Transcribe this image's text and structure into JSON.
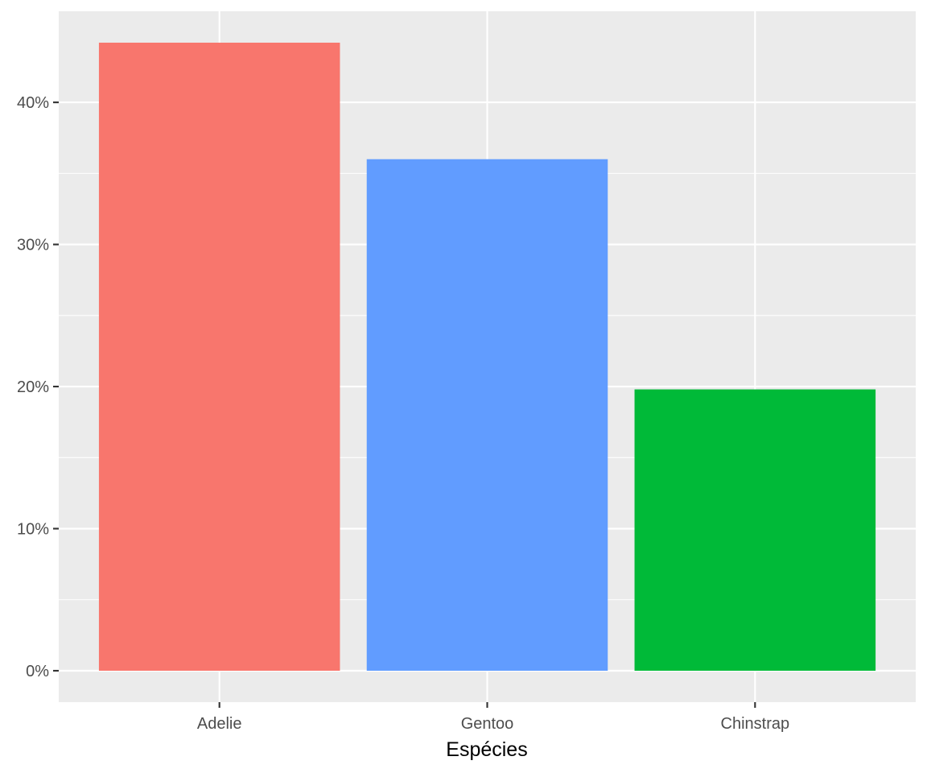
{
  "chart_data": {
    "type": "bar",
    "title": "",
    "xlabel": "Espécies",
    "ylabel": "",
    "categories": [
      "Adelie",
      "Gentoo",
      "Chinstrap"
    ],
    "values": [
      44.2,
      36.0,
      19.8
    ],
    "colors": [
      "#F8766D",
      "#619CFF",
      "#00BA38"
    ],
    "y_unit": "%",
    "ylim": [
      -2.21,
      46.41
    ],
    "yticks": [
      0,
      10,
      20,
      30,
      40
    ],
    "ytick_labels": [
      "0%",
      "10%",
      "20%",
      "30%",
      "40%"
    ],
    "grid": true,
    "legend": "none",
    "panel_background": "#EBEBEB",
    "grid_color": "#FFFFFF",
    "tick_label_color": "#4D4D4D",
    "axis_title_color": "#000000"
  }
}
